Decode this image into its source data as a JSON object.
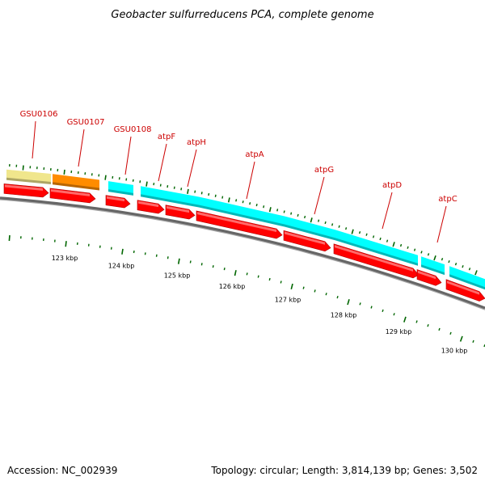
{
  "title": "Geobacter sulfurreducens PCA, complete genome",
  "footer": {
    "accession": "Accession: NC_002939",
    "summary": "Topology: circular; Length: 3,814,139 bp; Genes: 3,502"
  },
  "colors": {
    "backbone": "#808080",
    "label": "#cc0000",
    "leader": "#cc0000",
    "cds": "#ff0000",
    "tick": "#006600"
  },
  "genes": [
    {
      "label": "GSU0106",
      "feature_color": "#f0e68c"
    },
    {
      "label": "GSU0107",
      "feature_color": "#ff8c00"
    },
    {
      "label": "GSU0108",
      "feature_color": "#00ffff"
    },
    {
      "label": "atpF",
      "feature_color": "#00ffff"
    },
    {
      "label": "atpH",
      "feature_color": "#00ffff"
    },
    {
      "label": "atpA",
      "feature_color": "#00ffff"
    },
    {
      "label": "atpG",
      "feature_color": "#00ffff"
    },
    {
      "label": "atpD",
      "feature_color": "#00ffff"
    },
    {
      "label": "atpC",
      "feature_color": "#00ffff"
    },
    {
      "label": "",
      "feature_color": "#0000cc"
    }
  ],
  "scale_labels": [
    "123 kbp",
    "124 kbp",
    "125 kbp",
    "126 kbp",
    "127 kbp",
    "128 kbp",
    "129 kbp",
    "130 kbp"
  ]
}
